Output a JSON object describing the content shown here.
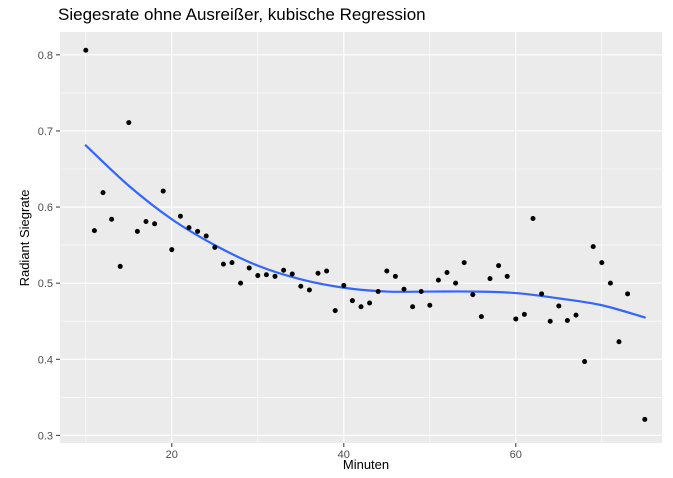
{
  "chart_data": {
    "type": "scatter",
    "title": "Siegesrate ohne Ausreißer, kubische Regression",
    "xlabel": "Minuten",
    "ylabel": "Radiant Siegrate",
    "xlim": [
      7,
      77
    ],
    "ylim": [
      0.29,
      0.83
    ],
    "x_ticks": [
      20,
      40,
      60
    ],
    "y_ticks": [
      0.3,
      0.4,
      0.5,
      0.6,
      0.7,
      0.8
    ],
    "x_tick_labels": [
      "20",
      "40",
      "60"
    ],
    "y_tick_labels": [
      "0.3",
      "0.4",
      "0.5",
      "0.6",
      "0.7",
      "0.8"
    ],
    "grid": true,
    "colors": {
      "panel_background": "#ebebeb",
      "grid": "#ffffff",
      "points": "#000000",
      "fit_line": "#3366ff"
    },
    "points": [
      {
        "x": 10,
        "y": 0.806
      },
      {
        "x": 11,
        "y": 0.569
      },
      {
        "x": 12,
        "y": 0.619
      },
      {
        "x": 13,
        "y": 0.584
      },
      {
        "x": 14,
        "y": 0.522
      },
      {
        "x": 15,
        "y": 0.711
      },
      {
        "x": 16,
        "y": 0.568
      },
      {
        "x": 17,
        "y": 0.581
      },
      {
        "x": 18,
        "y": 0.578
      },
      {
        "x": 19,
        "y": 0.621
      },
      {
        "x": 20,
        "y": 0.544
      },
      {
        "x": 21,
        "y": 0.588
      },
      {
        "x": 22,
        "y": 0.573
      },
      {
        "x": 23,
        "y": 0.568
      },
      {
        "x": 24,
        "y": 0.562
      },
      {
        "x": 25,
        "y": 0.547
      },
      {
        "x": 26,
        "y": 0.525
      },
      {
        "x": 27,
        "y": 0.527
      },
      {
        "x": 28,
        "y": 0.5
      },
      {
        "x": 29,
        "y": 0.52
      },
      {
        "x": 30,
        "y": 0.51
      },
      {
        "x": 31,
        "y": 0.511
      },
      {
        "x": 32,
        "y": 0.509
      },
      {
        "x": 33,
        "y": 0.517
      },
      {
        "x": 34,
        "y": 0.512
      },
      {
        "x": 35,
        "y": 0.496
      },
      {
        "x": 36,
        "y": 0.491
      },
      {
        "x": 37,
        "y": 0.513
      },
      {
        "x": 38,
        "y": 0.516
      },
      {
        "x": 39,
        "y": 0.464
      },
      {
        "x": 40,
        "y": 0.497
      },
      {
        "x": 41,
        "y": 0.477
      },
      {
        "x": 42,
        "y": 0.469
      },
      {
        "x": 43,
        "y": 0.474
      },
      {
        "x": 44,
        "y": 0.489
      },
      {
        "x": 45,
        "y": 0.516
      },
      {
        "x": 46,
        "y": 0.509
      },
      {
        "x": 47,
        "y": 0.492
      },
      {
        "x": 48,
        "y": 0.469
      },
      {
        "x": 49,
        "y": 0.489
      },
      {
        "x": 50,
        "y": 0.471
      },
      {
        "x": 51,
        "y": 0.504
      },
      {
        "x": 52,
        "y": 0.514
      },
      {
        "x": 53,
        "y": 0.5
      },
      {
        "x": 54,
        "y": 0.527
      },
      {
        "x": 55,
        "y": 0.485
      },
      {
        "x": 56,
        "y": 0.456
      },
      {
        "x": 57,
        "y": 0.506
      },
      {
        "x": 58,
        "y": 0.523
      },
      {
        "x": 59,
        "y": 0.509
      },
      {
        "x": 60,
        "y": 0.453
      },
      {
        "x": 61,
        "y": 0.459
      },
      {
        "x": 62,
        "y": 0.585
      },
      {
        "x": 63,
        "y": 0.486
      },
      {
        "x": 64,
        "y": 0.45
      },
      {
        "x": 65,
        "y": 0.47
      },
      {
        "x": 66,
        "y": 0.451
      },
      {
        "x": 67,
        "y": 0.458
      },
      {
        "x": 68,
        "y": 0.397
      },
      {
        "x": 69,
        "y": 0.548
      },
      {
        "x": 70,
        "y": 0.527
      },
      {
        "x": 71,
        "y": 0.5
      },
      {
        "x": 72,
        "y": 0.423
      },
      {
        "x": 73,
        "y": 0.486
      },
      {
        "x": 75,
        "y": 0.321
      }
    ],
    "fit_line": {
      "type": "cubic",
      "points": [
        {
          "x": 10,
          "y": 0.681
        },
        {
          "x": 15,
          "y": 0.628
        },
        {
          "x": 20,
          "y": 0.584
        },
        {
          "x": 25,
          "y": 0.55
        },
        {
          "x": 30,
          "y": 0.523
        },
        {
          "x": 35,
          "y": 0.505
        },
        {
          "x": 40,
          "y": 0.494
        },
        {
          "x": 45,
          "y": 0.489
        },
        {
          "x": 50,
          "y": 0.489
        },
        {
          "x": 55,
          "y": 0.489
        },
        {
          "x": 60,
          "y": 0.487
        },
        {
          "x": 65,
          "y": 0.48
        },
        {
          "x": 70,
          "y": 0.471
        },
        {
          "x": 75,
          "y": 0.455
        }
      ]
    }
  }
}
